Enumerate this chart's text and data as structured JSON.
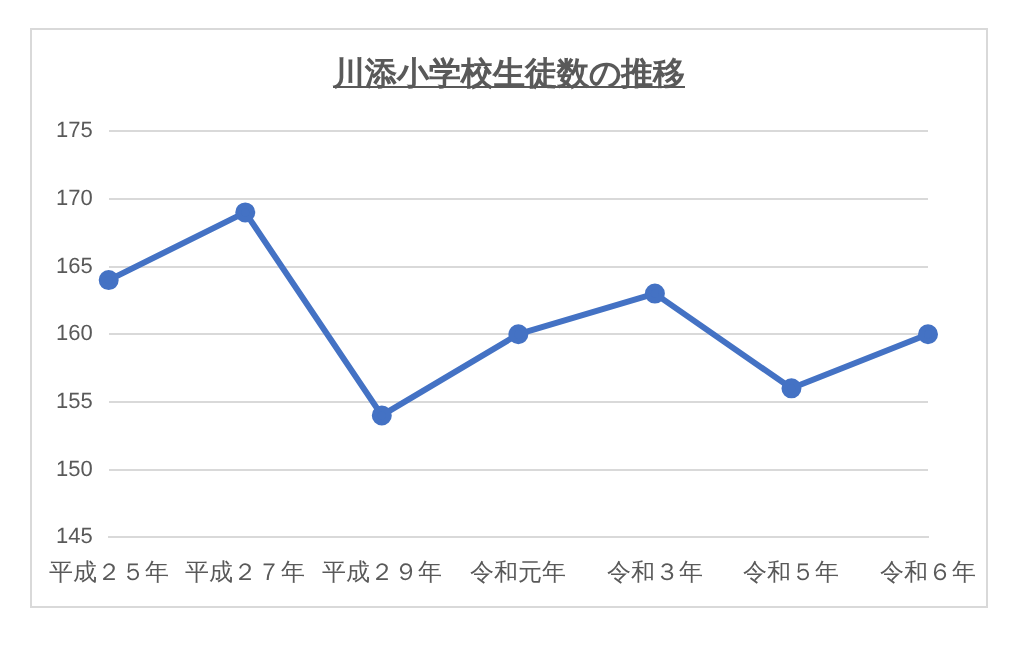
{
  "chart_data": {
    "type": "line",
    "title": "川添小学校生徒数の推移",
    "categories": [
      "平成２５年",
      "平成２７年",
      "平成２９年",
      "令和元年",
      "令和３年",
      "令和５年",
      "令和６年"
    ],
    "series": [
      {
        "color": "#4472c4",
        "values": [
          164,
          169,
          154,
          160,
          163,
          156,
          160
        ]
      }
    ],
    "ylim": [
      145,
      175
    ],
    "yticks": [
      145,
      150,
      155,
      160,
      165,
      170,
      175
    ],
    "grid": "y",
    "legend": false,
    "marker": "circle",
    "line_style": "solid"
  }
}
